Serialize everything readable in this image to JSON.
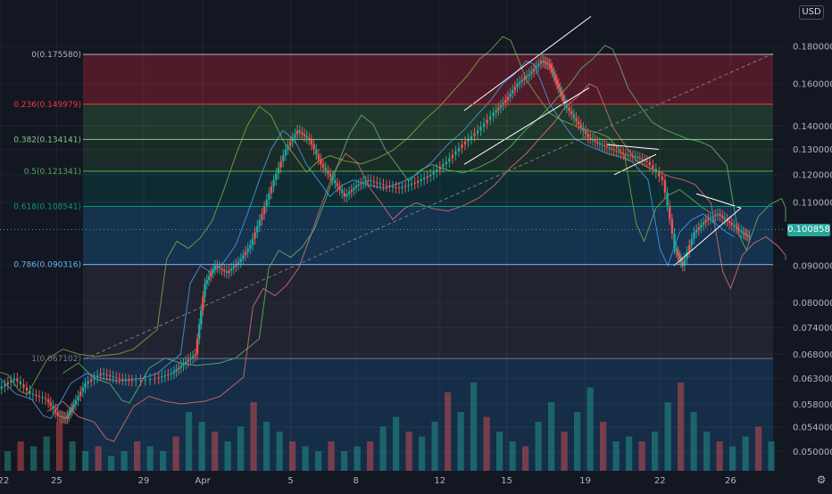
{
  "chart_data": {
    "type": "candlestick",
    "title": "",
    "currency_button": "USD",
    "last_price_label": "0.100858",
    "last_price": 0.100858,
    "y_scale": "log",
    "ylim": [
      0.048,
      0.19
    ],
    "y_ticks": [
      {
        "label": "0.180000",
        "value": 0.18
      },
      {
        "label": "0.160000",
        "value": 0.16
      },
      {
        "label": "0.140000",
        "value": 0.14
      },
      {
        "label": "0.130000",
        "value": 0.13
      },
      {
        "label": "0.120000",
        "value": 0.12
      },
      {
        "label": "0.110000",
        "value": 0.11
      },
      {
        "label": "0.090000",
        "value": 0.09
      },
      {
        "label": "0.080000",
        "value": 0.08
      },
      {
        "label": "0.074000",
        "value": 0.074
      },
      {
        "label": "0.068000",
        "value": 0.068
      },
      {
        "label": "0.063000",
        "value": 0.063
      },
      {
        "label": "0.058000",
        "value": 0.058
      },
      {
        "label": "0.054000",
        "value": 0.054
      },
      {
        "label": "0.050000",
        "value": 0.05
      }
    ],
    "x_ticks": [
      "22",
      "25",
      "29",
      "Apr",
      "5",
      "8",
      "12",
      "15",
      "19",
      "22",
      "26"
    ],
    "fibonacci": [
      {
        "label": "0(0.175580)",
        "ratio": 0,
        "price": 0.17558,
        "color": "#b2b5be"
      },
      {
        "label": "0.236(0.149979)",
        "ratio": 0.236,
        "price": 0.149979,
        "color": "#f23645"
      },
      {
        "label": "0.382(0.134141)",
        "ratio": 0.382,
        "price": 0.134141,
        "color": "#81c784"
      },
      {
        "label": "0.5(0.121341)",
        "ratio": 0.5,
        "price": 0.121341,
        "color": "#4caf50"
      },
      {
        "label": "0.618(0.108541)",
        "ratio": 0.618,
        "price": 0.108541,
        "color": "#089981"
      },
      {
        "label": "0.786(0.090316)",
        "ratio": 0.786,
        "price": 0.090316,
        "color": "#64b5f6"
      },
      {
        "label": "1(0.067102)",
        "ratio": 1,
        "price": 0.067102,
        "color": "#787b86"
      }
    ],
    "price_path": [
      [
        0,
        0.061
      ],
      [
        0.02,
        0.063
      ],
      [
        0.04,
        0.06
      ],
      [
        0.06,
        0.059
      ],
      [
        0.075,
        0.056
      ],
      [
        0.085,
        0.0555
      ],
      [
        0.095,
        0.058
      ],
      [
        0.11,
        0.062
      ],
      [
        0.13,
        0.064
      ],
      [
        0.15,
        0.063
      ],
      [
        0.17,
        0.0625
      ],
      [
        0.2,
        0.063
      ],
      [
        0.22,
        0.064
      ],
      [
        0.235,
        0.066
      ],
      [
        0.25,
        0.068
      ],
      [
        0.262,
        0.085
      ],
      [
        0.275,
        0.09
      ],
      [
        0.29,
        0.088
      ],
      [
        0.305,
        0.091
      ],
      [
        0.32,
        0.096
      ],
      [
        0.335,
        0.106
      ],
      [
        0.35,
        0.118
      ],
      [
        0.365,
        0.13
      ],
      [
        0.38,
        0.138
      ],
      [
        0.395,
        0.134
      ],
      [
        0.41,
        0.124
      ],
      [
        0.425,
        0.118
      ],
      [
        0.44,
        0.112
      ],
      [
        0.455,
        0.116
      ],
      [
        0.47,
        0.118
      ],
      [
        0.49,
        0.116
      ],
      [
        0.51,
        0.115
      ],
      [
        0.53,
        0.117
      ],
      [
        0.55,
        0.12
      ],
      [
        0.57,
        0.125
      ],
      [
        0.59,
        0.132
      ],
      [
        0.61,
        0.138
      ],
      [
        0.63,
        0.146
      ],
      [
        0.645,
        0.152
      ],
      [
        0.66,
        0.16
      ],
      [
        0.675,
        0.165
      ],
      [
        0.69,
        0.172
      ],
      [
        0.7,
        0.17
      ],
      [
        0.71,
        0.16
      ],
      [
        0.72,
        0.15
      ],
      [
        0.735,
        0.142
      ],
      [
        0.75,
        0.135
      ],
      [
        0.765,
        0.132
      ],
      [
        0.78,
        0.13
      ],
      [
        0.795,
        0.128
      ],
      [
        0.81,
        0.127
      ],
      [
        0.825,
        0.125
      ],
      [
        0.845,
        0.118
      ],
      [
        0.86,
        0.095
      ],
      [
        0.87,
        0.09
      ],
      [
        0.885,
        0.1
      ],
      [
        0.9,
        0.104
      ],
      [
        0.915,
        0.106
      ],
      [
        0.93,
        0.103
      ],
      [
        0.945,
        0.1
      ],
      [
        0.955,
        0.0985
      ]
    ],
    "volume": [
      0.2,
      0.3,
      0.25,
      0.35,
      0.5,
      0.3,
      0.2,
      0.25,
      0.15,
      0.2,
      0.3,
      0.25,
      0.2,
      0.35,
      0.6,
      0.5,
      0.4,
      0.3,
      0.45,
      0.7,
      0.5,
      0.4,
      0.3,
      0.25,
      0.2,
      0.3,
      0.2,
      0.25,
      0.3,
      0.45,
      0.55,
      0.4,
      0.35,
      0.5,
      0.8,
      0.6,
      0.9,
      0.55,
      0.4,
      0.3,
      0.25,
      0.5,
      0.7,
      0.4,
      0.6,
      0.85,
      0.5,
      0.3,
      0.35,
      0.3,
      0.4,
      0.7,
      0.9,
      0.6,
      0.4,
      0.3,
      0.25,
      0.35,
      0.45,
      0.3
    ],
    "legend": "none"
  }
}
